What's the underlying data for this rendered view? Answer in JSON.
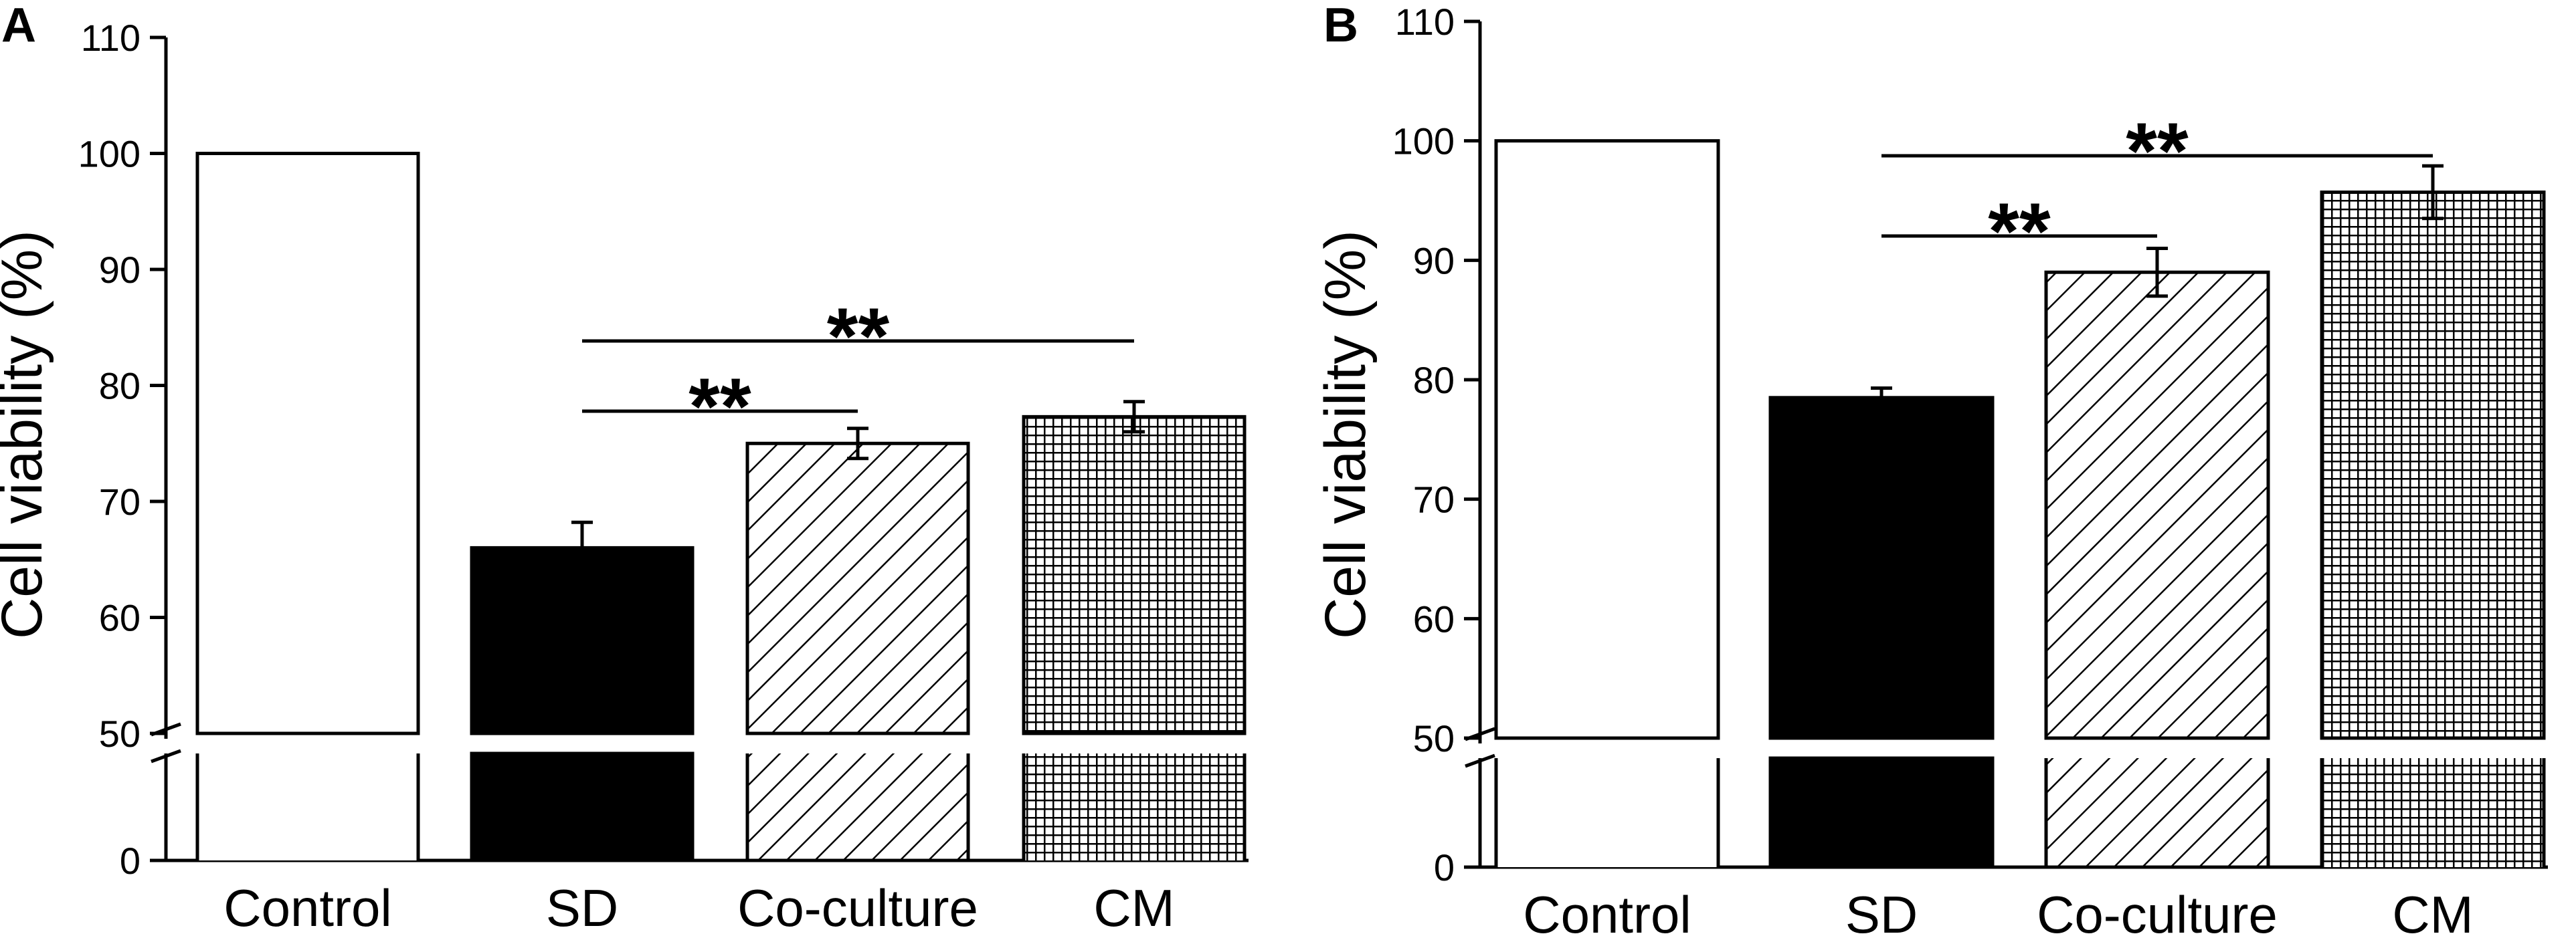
{
  "chart_data": [
    {
      "panel": "A",
      "type": "bar",
      "ylabel": "Cell viability (%)",
      "xlabel": "",
      "ylim": [
        0,
        110
      ],
      "axis_break": [
        0,
        50
      ],
      "yticks": [
        0,
        50,
        60,
        70,
        80,
        90,
        100,
        110
      ],
      "categories": [
        "Control",
        "SD",
        "Co-culture",
        "CM"
      ],
      "values": [
        100,
        66,
        75,
        77.3
      ],
      "errors": [
        0,
        2.2,
        1.3,
        1.3
      ],
      "fills": [
        "white",
        "solid",
        "hatch",
        "grid"
      ],
      "significance": [
        {
          "from": "SD",
          "to": "CM",
          "label": "**"
        },
        {
          "from": "SD",
          "to": "Co-culture",
          "label": "**"
        }
      ]
    },
    {
      "panel": "B",
      "type": "bar",
      "ylabel": "Cell viability (%)",
      "xlabel": "",
      "ylim": [
        0,
        110
      ],
      "axis_break": [
        0,
        50
      ],
      "yticks": [
        0,
        50,
        60,
        70,
        80,
        90,
        100,
        110
      ],
      "categories": [
        "Control",
        "SD",
        "Co-culture",
        "CM"
      ],
      "values": [
        100,
        78.5,
        89,
        95.7
      ],
      "errors": [
        0,
        0.8,
        2,
        2.2
      ],
      "fills": [
        "white",
        "solid",
        "hatch",
        "grid"
      ],
      "significance": [
        {
          "from": "SD",
          "to": "CM",
          "label": "**"
        },
        {
          "from": "SD",
          "to": "Co-culture",
          "label": "**"
        }
      ]
    }
  ]
}
